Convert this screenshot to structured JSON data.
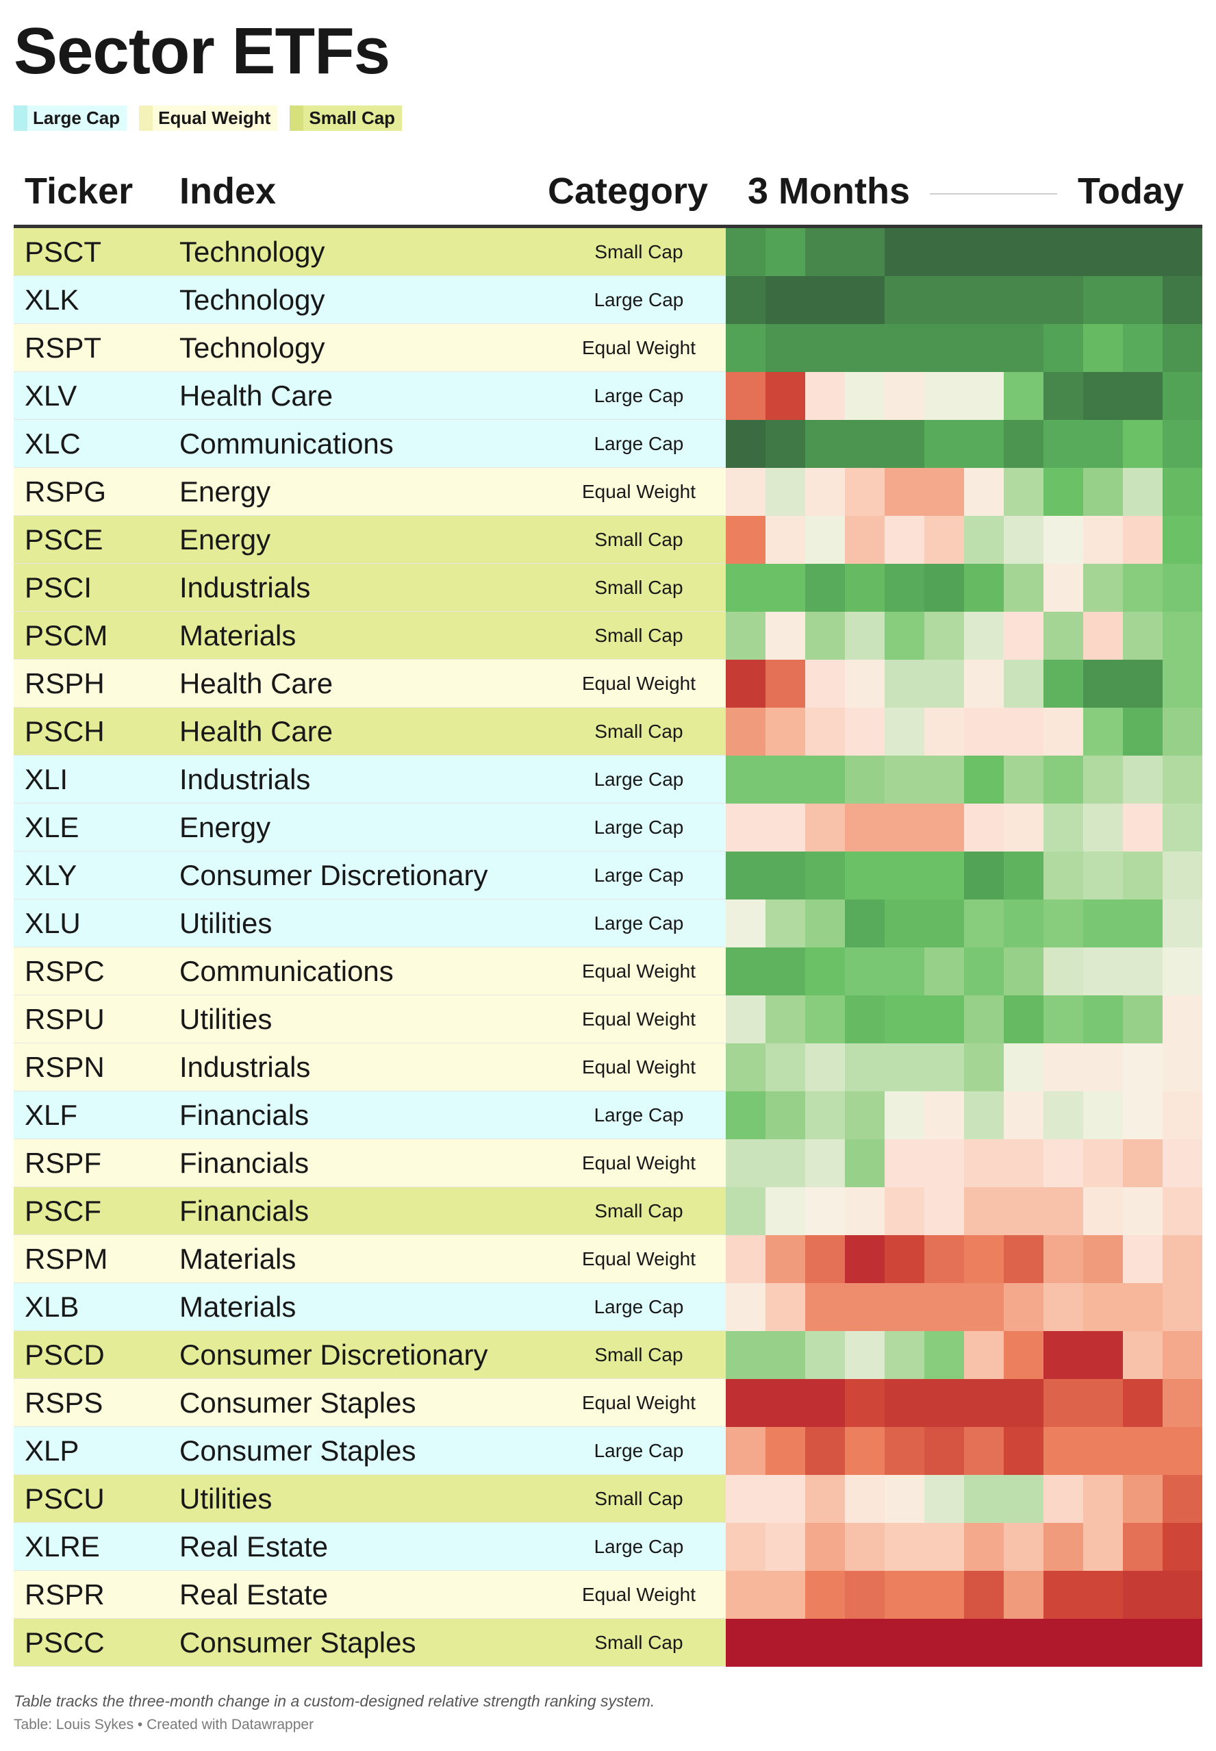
{
  "title": "Sector ETFs",
  "legend": [
    {
      "label": "Large Cap",
      "color": "#e0fdfd",
      "swatch": "#b6f1f1"
    },
    {
      "label": "Equal Weight",
      "color": "#fdfcdc",
      "swatch": "#f4f2b9"
    },
    {
      "label": "Small Cap",
      "color": "#e4ec98",
      "swatch": "#d6e07c"
    }
  ],
  "headers": {
    "ticker": "Ticker",
    "index": "Index",
    "category": "Category",
    "period_start": "3 Months",
    "period_end": "Today"
  },
  "chart_data": {
    "type": "heatmap",
    "columns": [
      "Ticker",
      "Index",
      "Category"
    ],
    "scale": "green = stronger relative strength, red = weaker",
    "rows": [
      {
        "ticker": "PSCT",
        "index": "Technology",
        "category": "Small Cap",
        "cells": [
          8.5,
          8,
          9,
          9,
          10,
          10,
          10,
          10,
          10,
          10,
          10,
          10
        ]
      },
      {
        "ticker": "XLK",
        "index": "Technology",
        "category": "Large Cap",
        "cells": [
          9.5,
          10,
          10,
          10,
          9,
          9,
          9,
          9,
          9,
          8.5,
          8.5,
          9.5
        ]
      },
      {
        "ticker": "RSPT",
        "index": "Technology",
        "category": "Equal Weight",
        "cells": [
          8,
          8.5,
          8.5,
          8.5,
          8.5,
          8.5,
          8.5,
          8.5,
          8,
          6.5,
          7.5,
          8.5
        ]
      },
      {
        "ticker": "XLV",
        "index": "Health Care",
        "category": "Large Cap",
        "cells": [
          -6.5,
          -8,
          -2,
          0.5,
          -1,
          0.5,
          0.5,
          5.5,
          9,
          9.5,
          9.5,
          8
        ]
      },
      {
        "ticker": "XLC",
        "index": "Communications",
        "category": "Large Cap",
        "cells": [
          10,
          9.5,
          8.5,
          8.5,
          8.5,
          7.5,
          7.5,
          8.5,
          7.5,
          7.5,
          6,
          7.5
        ]
      },
      {
        "ticker": "RSPG",
        "index": "Energy",
        "category": "Equal Weight",
        "cells": [
          -1.5,
          1.5,
          -1.5,
          -3,
          -4.5,
          -4.5,
          -1,
          3.5,
          6,
          4.5,
          2.5,
          6.5
        ]
      },
      {
        "ticker": "PSCE",
        "index": "Energy",
        "category": "Small Cap",
        "cells": [
          -6,
          -1.5,
          0.5,
          -3.5,
          -2,
          -3,
          3,
          1.5,
          0.3,
          -1.5,
          -2.5,
          6
        ]
      },
      {
        "ticker": "PSCI",
        "index": "Industrials",
        "category": "Small Cap",
        "cells": [
          6,
          6,
          7.5,
          6.5,
          7.5,
          8,
          6.5,
          4,
          -1,
          4,
          5,
          5.5
        ]
      },
      {
        "ticker": "PSCM",
        "index": "Materials",
        "category": "Small Cap",
        "cells": [
          4,
          -1,
          4,
          2.5,
          5,
          3.5,
          1.5,
          -2,
          4,
          -2.5,
          4,
          5
        ]
      },
      {
        "ticker": "RSPH",
        "index": "Health Care",
        "category": "Equal Weight",
        "cells": [
          -8.5,
          -6.5,
          -2,
          -1,
          2.5,
          2.5,
          -1,
          2.5,
          7,
          8.5,
          8.5,
          5
        ]
      },
      {
        "ticker": "PSCH",
        "index": "Health Care",
        "category": "Small Cap",
        "cells": [
          -5,
          -4,
          -2.5,
          -2,
          1.5,
          -1.5,
          -2,
          -2,
          -1.5,
          5,
          7,
          4.5
        ]
      },
      {
        "ticker": "XLI",
        "index": "Industrials",
        "category": "Large Cap",
        "cells": [
          5.5,
          5.5,
          5.5,
          4.5,
          4,
          4,
          6,
          4,
          5,
          3.5,
          2.5,
          3.5
        ]
      },
      {
        "ticker": "XLE",
        "index": "Energy",
        "category": "Large Cap",
        "cells": [
          -2,
          -2,
          -3.5,
          -4.5,
          -4.5,
          -4.5,
          -2,
          -1.5,
          3,
          2,
          -2,
          3
        ]
      },
      {
        "ticker": "XLY",
        "index": "Consumer Discretionary",
        "category": "Large Cap",
        "cells": [
          7.5,
          7.5,
          7,
          6,
          6,
          6,
          8,
          7,
          3.5,
          3,
          3.5,
          2
        ]
      },
      {
        "ticker": "XLU",
        "index": "Utilities",
        "category": "Large Cap",
        "cells": [
          0.5,
          3.5,
          4.5,
          7.5,
          6.5,
          6.5,
          5,
          5.5,
          5,
          5.5,
          5.5,
          1.5
        ]
      },
      {
        "ticker": "RSPC",
        "index": "Communications",
        "category": "Equal Weight",
        "cells": [
          7,
          7,
          6,
          5.5,
          5.5,
          4.5,
          5.5,
          4.5,
          2,
          1.5,
          1.5,
          0.5
        ]
      },
      {
        "ticker": "RSPU",
        "index": "Utilities",
        "category": "Equal Weight",
        "cells": [
          1.5,
          4,
          5,
          6.5,
          6,
          6,
          4.5,
          6.5,
          5,
          5.5,
          4.5,
          -1
        ]
      },
      {
        "ticker": "RSPN",
        "index": "Industrials",
        "category": "Equal Weight",
        "cells": [
          4,
          3,
          2,
          3,
          3,
          3,
          4,
          0.5,
          -1,
          -1,
          -0.5,
          -1
        ]
      },
      {
        "ticker": "XLF",
        "index": "Financials",
        "category": "Large Cap",
        "cells": [
          5.5,
          4.5,
          3,
          4,
          0.5,
          -1,
          2.5,
          -1,
          1.5,
          0.5,
          -0.5,
          -1.5
        ]
      },
      {
        "ticker": "RSPF",
        "index": "Financials",
        "category": "Equal Weight",
        "cells": [
          2.5,
          2.5,
          1.5,
          4.5,
          -2,
          -2,
          -2.5,
          -2.5,
          -2,
          -2.5,
          -3.5,
          -2
        ]
      },
      {
        "ticker": "PSCF",
        "index": "Financials",
        "category": "Small Cap",
        "cells": [
          3,
          0.5,
          -0.5,
          -1,
          -2.5,
          -2,
          -3.5,
          -3.5,
          -3.5,
          -1.5,
          -1,
          -2.5
        ]
      },
      {
        "ticker": "RSPM",
        "index": "Materials",
        "category": "Equal Weight",
        "cells": [
          -2.5,
          -5,
          -6.5,
          -9,
          -8,
          -6.5,
          -6,
          -7,
          -4.5,
          -5,
          -2,
          -3.5
        ]
      },
      {
        "ticker": "XLB",
        "index": "Materials",
        "category": "Large Cap",
        "cells": [
          -1,
          -3,
          -5.5,
          -5.5,
          -5.5,
          -5.5,
          -5.5,
          -4.5,
          -3.5,
          -4,
          -4,
          -3.5
        ]
      },
      {
        "ticker": "PSCD",
        "index": "Consumer Discretionary",
        "category": "Small Cap",
        "cells": [
          4.5,
          4.5,
          3,
          1.5,
          3.5,
          5,
          -3.5,
          -6,
          -9,
          -9,
          -3.5,
          -4.5
        ]
      },
      {
        "ticker": "RSPS",
        "index": "Consumer Staples",
        "category": "Equal Weight",
        "cells": [
          -9,
          -9,
          -9,
          -8,
          -8.5,
          -8.5,
          -8.5,
          -8.5,
          -7,
          -7,
          -8,
          -5.5
        ]
      },
      {
        "ticker": "XLP",
        "index": "Consumer Staples",
        "category": "Large Cap",
        "cells": [
          -4.5,
          -6,
          -7.5,
          -6,
          -7,
          -7.5,
          -6.5,
          -8,
          -6,
          -6,
          -6,
          -6
        ]
      },
      {
        "ticker": "PSCU",
        "index": "Utilities",
        "category": "Small Cap",
        "cells": [
          -2,
          -2,
          -3.5,
          -1.5,
          -1,
          1.5,
          3,
          3,
          -2.5,
          -3.5,
          -5,
          -7
        ]
      },
      {
        "ticker": "XLRE",
        "index": "Real Estate",
        "category": "Large Cap",
        "cells": [
          -3,
          -2.5,
          -4.5,
          -3.5,
          -3,
          -3,
          -4.5,
          -3.5,
          -5,
          -3.5,
          -6.5,
          -8
        ]
      },
      {
        "ticker": "RSPR",
        "index": "Real Estate",
        "category": "Equal Weight",
        "cells": [
          -4,
          -4,
          -6,
          -6.5,
          -6,
          -6,
          -7.5,
          -5,
          -8,
          -8,
          -8.5,
          -8.5
        ]
      },
      {
        "ticker": "PSCC",
        "index": "Consumer Staples",
        "category": "Small Cap",
        "cells": [
          -10,
          -10,
          -10,
          -10,
          -10,
          -10,
          -10,
          -10,
          -10,
          -10,
          -10,
          -10
        ]
      }
    ]
  },
  "footer": {
    "note": "Table tracks the three-month change in a custom-designed relative strength ranking system.",
    "credit": "Table: Louis Sykes • Created with Datawrapper"
  }
}
